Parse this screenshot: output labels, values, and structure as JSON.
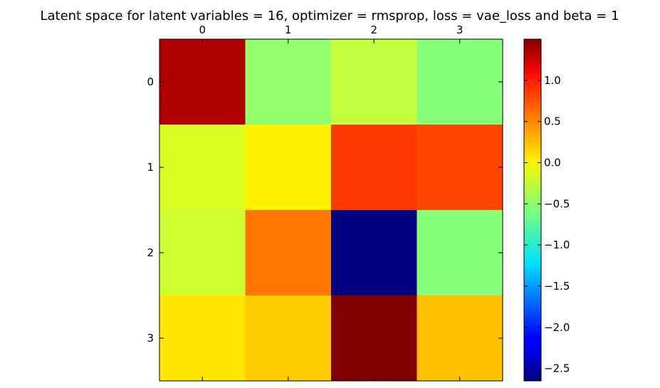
{
  "chart_data": {
    "type": "heatmap",
    "title": "Latent space for latent variables = 16, optimizer = rmsprop, loss = vae_loss and beta = 1",
    "x_ticks": [
      "0",
      "1",
      "2",
      "3"
    ],
    "y_ticks": [
      "0",
      "1",
      "2",
      "3"
    ],
    "xlabel": "",
    "ylabel": "",
    "colormap": "jet",
    "vmin": -2.65,
    "vmax": 1.5,
    "values": [
      [
        1.3,
        -0.5,
        -0.3,
        -0.55
      ],
      [
        -0.2,
        0.0,
        0.75,
        0.7
      ],
      [
        -0.25,
        0.5,
        -2.65,
        -0.55
      ],
      [
        0.05,
        0.15,
        1.5,
        0.2
      ]
    ],
    "colorbar": {
      "ticks": [
        1.0,
        0.5,
        0.0,
        -0.5,
        -1.0,
        -1.5,
        -2.0,
        -2.5
      ],
      "tick_labels": [
        "1.0",
        "0.5",
        "0.0",
        "−0.5",
        "−1.0",
        "−1.5",
        "−2.0",
        "−2.5"
      ]
    }
  }
}
